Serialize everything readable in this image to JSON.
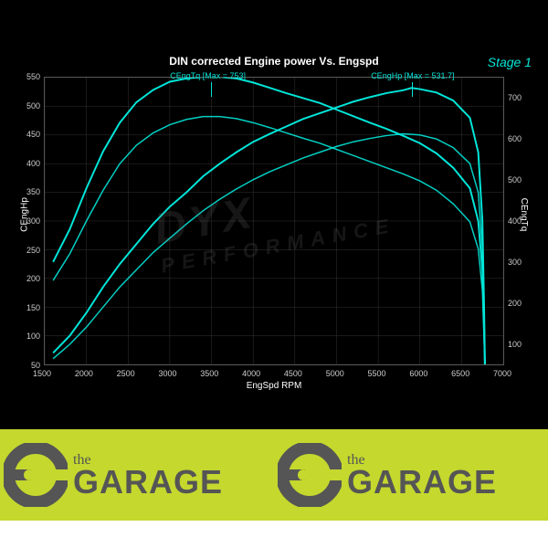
{
  "chart": {
    "title": "DIN corrected Engine power Vs. Engspd",
    "stage": "Stage 1",
    "background": "#000000",
    "line_color": "#00e5d8",
    "grid_color": "#333333",
    "text_color": "#ffffff",
    "watermark_main": "DYX",
    "watermark_sub": "PERFORMANCE",
    "x": {
      "label": "EngSpd RPM",
      "min": 1500,
      "max": 7000,
      "ticks": [
        1500,
        2000,
        2500,
        3000,
        3500,
        4000,
        4500,
        5000,
        5500,
        6000,
        6500,
        7000
      ]
    },
    "y_left": {
      "label": "CEngHp",
      "min": 50,
      "max": 550,
      "ticks": [
        50,
        100,
        150,
        200,
        250,
        300,
        350,
        400,
        450,
        500,
        550
      ]
    },
    "y_right": {
      "label": "CEngTq",
      "min": 50,
      "max": 750,
      "ticks": [
        100,
        200,
        300,
        400,
        500,
        600,
        700
      ]
    },
    "annotations": {
      "tq": {
        "text": "CEngTq [Max = 753]",
        "rpm": 3500
      },
      "hp": {
        "text": "CEngHp [Max = 531.7]",
        "rpm": 5900
      }
    },
    "series_pair1": {
      "hp": [
        [
          1600,
          70
        ],
        [
          1800,
          100
        ],
        [
          2000,
          140
        ],
        [
          2200,
          185
        ],
        [
          2400,
          225
        ],
        [
          2600,
          260
        ],
        [
          2800,
          295
        ],
        [
          3000,
          325
        ],
        [
          3200,
          350
        ],
        [
          3400,
          378
        ],
        [
          3600,
          400
        ],
        [
          3800,
          420
        ],
        [
          4000,
          438
        ],
        [
          4200,
          452
        ],
        [
          4400,
          465
        ],
        [
          4600,
          478
        ],
        [
          4800,
          488
        ],
        [
          5000,
          498
        ],
        [
          5200,
          508
        ],
        [
          5400,
          516
        ],
        [
          5600,
          523
        ],
        [
          5800,
          528
        ],
        [
          5900,
          532
        ],
        [
          6000,
          530
        ],
        [
          6200,
          524
        ],
        [
          6400,
          510
        ],
        [
          6600,
          480
        ],
        [
          6700,
          420
        ],
        [
          6750,
          300
        ],
        [
          6770,
          150
        ],
        [
          6780,
          50
        ]
      ],
      "tq": [
        [
          1600,
          300
        ],
        [
          1800,
          380
        ],
        [
          2000,
          480
        ],
        [
          2200,
          570
        ],
        [
          2400,
          640
        ],
        [
          2600,
          690
        ],
        [
          2800,
          720
        ],
        [
          3000,
          740
        ],
        [
          3200,
          748
        ],
        [
          3400,
          752
        ],
        [
          3500,
          753
        ],
        [
          3600,
          752
        ],
        [
          3800,
          748
        ],
        [
          4000,
          738
        ],
        [
          4200,
          725
        ],
        [
          4400,
          712
        ],
        [
          4600,
          700
        ],
        [
          4800,
          688
        ],
        [
          5000,
          672
        ],
        [
          5200,
          656
        ],
        [
          5400,
          640
        ],
        [
          5600,
          625
        ],
        [
          5800,
          608
        ],
        [
          6000,
          590
        ],
        [
          6200,
          565
        ],
        [
          6400,
          530
        ],
        [
          6600,
          480
        ],
        [
          6700,
          400
        ],
        [
          6750,
          280
        ],
        [
          6770,
          140
        ],
        [
          6780,
          50
        ]
      ]
    },
    "series_pair2": {
      "hp": [
        [
          1600,
          60
        ],
        [
          1800,
          85
        ],
        [
          2000,
          115
        ],
        [
          2200,
          150
        ],
        [
          2400,
          185
        ],
        [
          2600,
          215
        ],
        [
          2800,
          245
        ],
        [
          3000,
          270
        ],
        [
          3200,
          295
        ],
        [
          3400,
          318
        ],
        [
          3600,
          338
        ],
        [
          3800,
          356
        ],
        [
          4000,
          372
        ],
        [
          4200,
          386
        ],
        [
          4400,
          398
        ],
        [
          4600,
          410
        ],
        [
          4800,
          420
        ],
        [
          5000,
          430
        ],
        [
          5200,
          438
        ],
        [
          5400,
          444
        ],
        [
          5600,
          449
        ],
        [
          5800,
          452
        ],
        [
          6000,
          450
        ],
        [
          6200,
          443
        ],
        [
          6400,
          428
        ],
        [
          6600,
          400
        ],
        [
          6700,
          350
        ],
        [
          6750,
          250
        ],
        [
          6770,
          120
        ],
        [
          6780,
          50
        ]
      ],
      "tq": [
        [
          1600,
          255
        ],
        [
          1800,
          320
        ],
        [
          2000,
          400
        ],
        [
          2200,
          475
        ],
        [
          2400,
          540
        ],
        [
          2600,
          585
        ],
        [
          2800,
          615
        ],
        [
          3000,
          635
        ],
        [
          3200,
          648
        ],
        [
          3400,
          655
        ],
        [
          3600,
          655
        ],
        [
          3800,
          650
        ],
        [
          4000,
          640
        ],
        [
          4200,
          628
        ],
        [
          4400,
          615
        ],
        [
          4600,
          602
        ],
        [
          4800,
          590
        ],
        [
          5000,
          575
        ],
        [
          5200,
          560
        ],
        [
          5400,
          545
        ],
        [
          5600,
          530
        ],
        [
          5800,
          515
        ],
        [
          6000,
          498
        ],
        [
          6200,
          475
        ],
        [
          6400,
          442
        ],
        [
          6600,
          398
        ],
        [
          6700,
          332
        ],
        [
          6750,
          230
        ],
        [
          6770,
          110
        ],
        [
          6780,
          50
        ]
      ]
    }
  },
  "logo": {
    "the": "the",
    "garage": "GARAGE",
    "strip_bg": "#c4d82e",
    "text_color": "#555555"
  }
}
